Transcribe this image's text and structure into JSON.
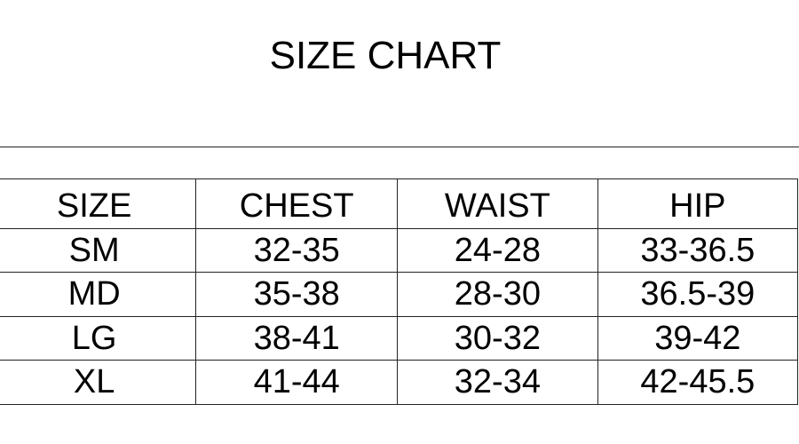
{
  "title": "SIZE CHART",
  "table": {
    "headers": [
      "SIZE",
      "CHEST",
      "WAIST",
      "HIP"
    ],
    "rows": [
      [
        "SM",
        "32-35",
        "24-28",
        "33-36.5"
      ],
      [
        "MD",
        "35-38",
        "28-30",
        "36.5-39"
      ],
      [
        "LG",
        "38-41",
        "30-32",
        "39-42"
      ],
      [
        "XL",
        "41-44",
        "32-34",
        "42-45.5"
      ]
    ]
  }
}
